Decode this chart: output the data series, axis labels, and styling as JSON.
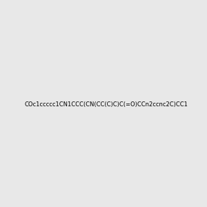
{
  "smiles": "COc1ccccc1CN1CCC(CN(CC(C)C)C(=O)CCn2ccnc2C)CC1",
  "title": "",
  "background_color": "#e8e8e8",
  "figsize": [
    3.0,
    3.0
  ],
  "dpi": 100
}
